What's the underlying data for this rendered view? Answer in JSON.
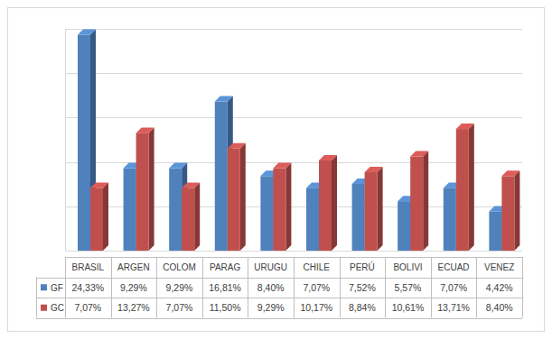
{
  "chart_data": {
    "type": "bar",
    "categories": [
      "BRASIL",
      "ARGEN",
      "COLOM",
      "PARAG",
      "URUGU",
      "CHILE",
      "PERÚ",
      "BOLIVI",
      "ECUAD",
      "VENEZ"
    ],
    "series": [
      {
        "name": "GF",
        "color": "#4f81bd",
        "values": [
          24.33,
          9.29,
          9.29,
          16.81,
          8.4,
          7.07,
          7.52,
          5.57,
          7.07,
          4.42
        ],
        "value_labels": [
          "24,33%",
          "9,29%",
          "9,29%",
          "16,81%",
          "8,40%",
          "7,07%",
          "7,52%",
          "5,57%",
          "7,07%",
          "4,42%"
        ]
      },
      {
        "name": "GC",
        "color": "#c0504d",
        "values": [
          7.07,
          13.27,
          7.07,
          11.5,
          9.29,
          10.17,
          8.84,
          10.61,
          13.71,
          8.4
        ],
        "value_labels": [
          "7,07%",
          "13,27%",
          "7,07%",
          "11,50%",
          "9,29%",
          "10,17%",
          "8,84%",
          "10,61%",
          "13,71%",
          "8,40%"
        ]
      }
    ],
    "ylim": [
      0,
      25
    ],
    "yticks": [
      0,
      5,
      10,
      15,
      20,
      25
    ],
    "grid": true,
    "tick_labels": false
  }
}
